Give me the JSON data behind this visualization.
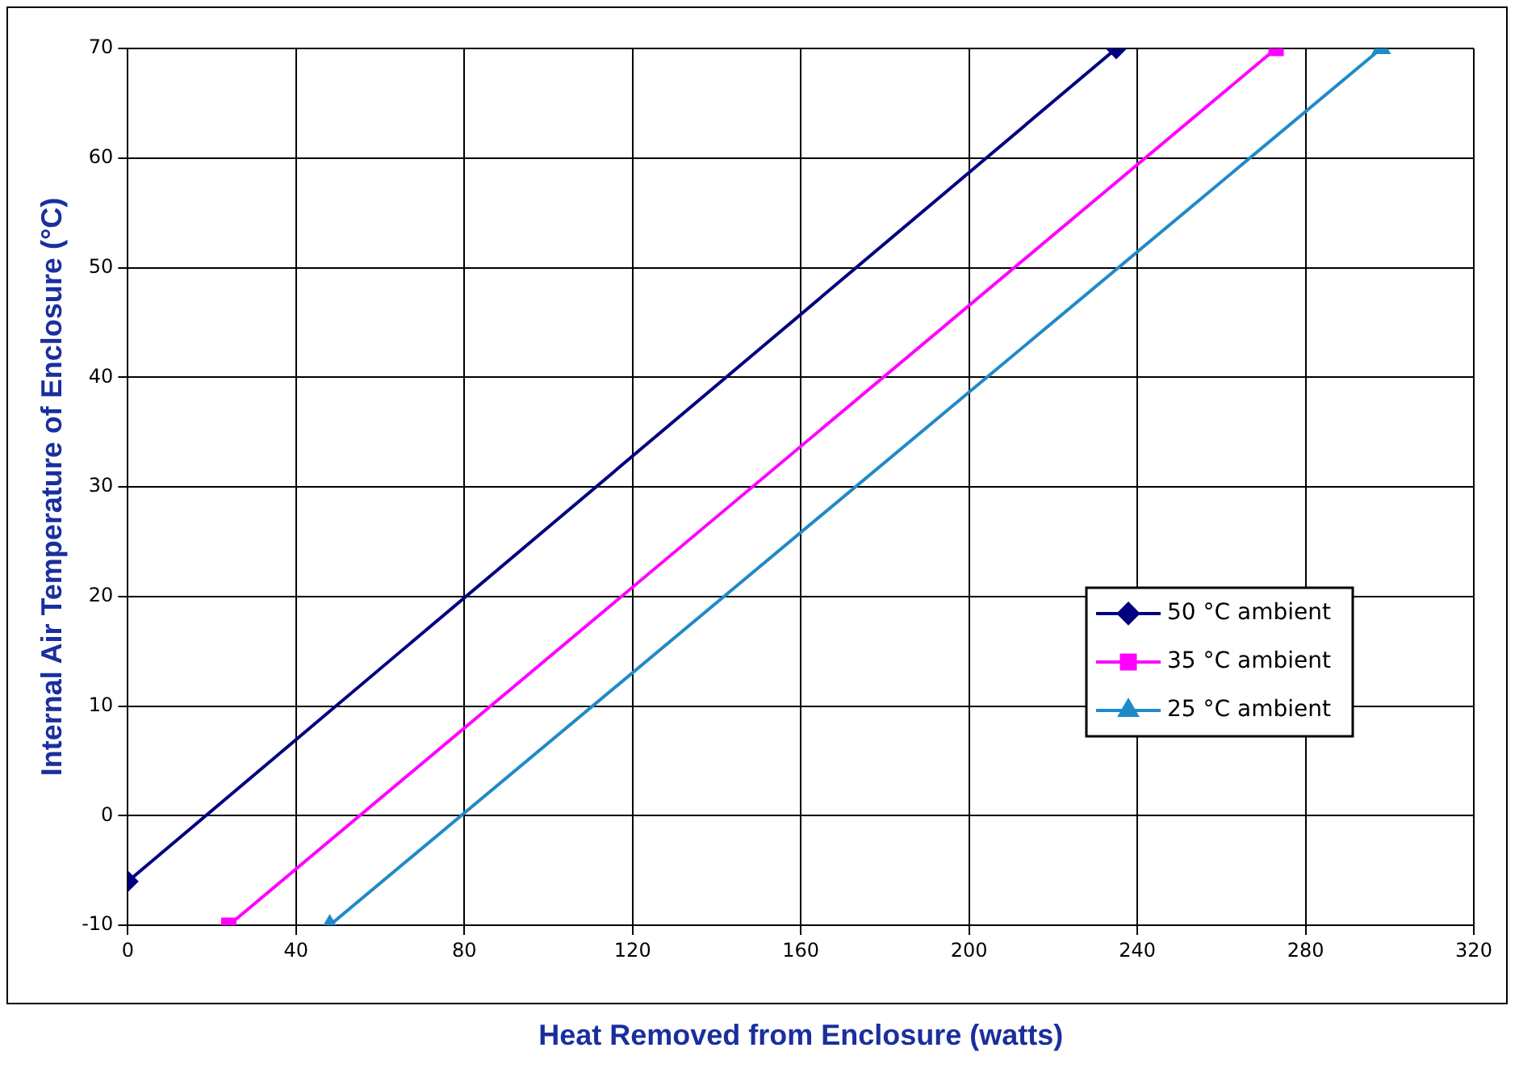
{
  "chart_data": {
    "type": "line",
    "xlabel": "Heat Removed from Enclosure (watts)",
    "ylabel": "Internal Air Temperature of Enclosure (°C)",
    "xlim": [
      0,
      320
    ],
    "xticks": [
      0,
      40,
      80,
      120,
      160,
      200,
      240,
      280,
      320
    ],
    "ylim": [
      -10,
      70
    ],
    "yticks": [
      -10,
      0,
      10,
      20,
      30,
      40,
      50,
      60,
      70
    ],
    "grid": true,
    "legend": "right",
    "line_style": "solid",
    "series": [
      {
        "name": "50 °C ambient",
        "color": "#000080",
        "marker": "diamond",
        "x": [
          0,
          235
        ],
        "values": [
          -6,
          70
        ]
      },
      {
        "name": "35 °C ambient",
        "color": "#ff00ff",
        "marker": "square",
        "x": [
          24,
          273
        ],
        "values": [
          -10,
          70
        ]
      },
      {
        "name": "25 °C ambient",
        "color": "#1f8ac9",
        "marker": "triangle",
        "x": [
          48,
          298
        ],
        "values": [
          -10,
          70
        ]
      }
    ]
  }
}
